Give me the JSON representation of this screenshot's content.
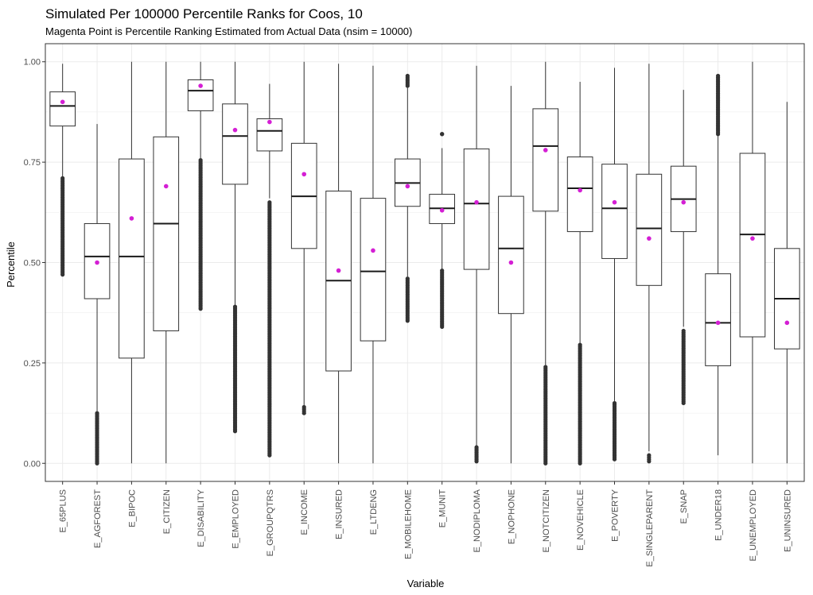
{
  "chart_data": {
    "type": "boxplot",
    "title": "Simulated Per 100000 Percentile Ranks for Coos, 10",
    "subtitle": "Magenta Point is Percentile Ranking Estimated from Actual Data (nsim = 10000)",
    "xlabel": "Variable",
    "ylabel": "Percentile",
    "ylim": [
      -0.045,
      1.045
    ],
    "yticks": [
      "0.00",
      "0.25",
      "0.50",
      "0.75",
      "1.00"
    ],
    "grid": true,
    "colors": {
      "box": "#333333",
      "median": "#1a1a1a",
      "outlier": "#333333",
      "point": "#d41fd4",
      "grid": "#ebebeb",
      "panel_border": "#333333"
    },
    "categories": [
      "E_65PLUS",
      "E_AGFOREST",
      "E_BIPOC",
      "E_CITIZEN",
      "E_DISABILITY",
      "E_EMPLOYED",
      "E_GROUPQTRS",
      "E_INCOME",
      "E_INSURED",
      "E_LTDENG",
      "E_MOBILEHOME",
      "E_MUNIT",
      "E_NODIPLOMA",
      "E_NOPHONE",
      "E_NOTCITIZEN",
      "E_NOVEHICLE",
      "E_POVERTY",
      "E_SINGLEPARENT",
      "E_SNAP",
      "E_UNDER18",
      "E_UNEMPLOYED",
      "E_UNINSURED"
    ],
    "boxes": [
      {
        "q1": 0.84,
        "median": 0.89,
        "q3": 0.925,
        "lower_whisker": 0.71,
        "upper_whisker": 0.995,
        "outliers_low": [
          0.47,
          0.71
        ],
        "outliers_high": [],
        "actual": 0.9
      },
      {
        "q1": 0.41,
        "median": 0.515,
        "q3": 0.597,
        "lower_whisker": 0.13,
        "upper_whisker": 0.845,
        "outliers_low": [
          0.0,
          0.125
        ],
        "outliers_high": [],
        "actual": 0.5
      },
      {
        "q1": 0.262,
        "median": 0.515,
        "q3": 0.758,
        "lower_whisker": 0.0,
        "upper_whisker": 1.0,
        "outliers_low": [],
        "outliers_high": [],
        "actual": 0.61
      },
      {
        "q1": 0.33,
        "median": 0.597,
        "q3": 0.813,
        "lower_whisker": 0.0,
        "upper_whisker": 1.0,
        "outliers_low": [],
        "outliers_high": [],
        "actual": 0.69
      },
      {
        "q1": 0.878,
        "median": 0.928,
        "q3": 0.955,
        "lower_whisker": 0.76,
        "upper_whisker": 1.0,
        "outliers_low": [
          0.385,
          0.755
        ],
        "outliers_high": [],
        "actual": 0.94
      },
      {
        "q1": 0.695,
        "median": 0.815,
        "q3": 0.895,
        "lower_whisker": 0.395,
        "upper_whisker": 1.0,
        "outliers_low": [
          0.08,
          0.39
        ],
        "outliers_high": [],
        "actual": 0.83
      },
      {
        "q1": 0.778,
        "median": 0.828,
        "q3": 0.858,
        "lower_whisker": 0.66,
        "upper_whisker": 0.945,
        "outliers_low": [
          0.02,
          0.65
        ],
        "outliers_high": [],
        "actual": 0.85
      },
      {
        "q1": 0.535,
        "median": 0.665,
        "q3": 0.797,
        "lower_whisker": 0.145,
        "upper_whisker": 1.0,
        "outliers_low": [
          0.125,
          0.14
        ],
        "outliers_high": [],
        "actual": 0.72
      },
      {
        "q1": 0.23,
        "median": 0.455,
        "q3": 0.678,
        "lower_whisker": 0.0,
        "upper_whisker": 0.995,
        "outliers_low": [],
        "outliers_high": [],
        "actual": 0.48
      },
      {
        "q1": 0.305,
        "median": 0.478,
        "q3": 0.66,
        "lower_whisker": 0.0,
        "upper_whisker": 0.99,
        "outliers_low": [],
        "outliers_high": [],
        "actual": 0.53
      },
      {
        "q1": 0.64,
        "median": 0.698,
        "q3": 0.758,
        "lower_whisker": 0.465,
        "upper_whisker": 0.935,
        "outliers_low": [
          0.355,
          0.46
        ],
        "outliers_high": [
          0.94,
          0.965
        ],
        "actual": 0.69
      },
      {
        "q1": 0.597,
        "median": 0.635,
        "q3": 0.67,
        "lower_whisker": 0.485,
        "upper_whisker": 0.785,
        "outliers_low": [
          0.34,
          0.48
        ],
        "outliers_high": [
          0.82
        ],
        "actual": 0.63
      },
      {
        "q1": 0.483,
        "median": 0.647,
        "q3": 0.783,
        "lower_whisker": 0.045,
        "upper_whisker": 0.99,
        "outliers_low": [
          0.005,
          0.04
        ],
        "outliers_high": [],
        "actual": 0.65
      },
      {
        "q1": 0.373,
        "median": 0.535,
        "q3": 0.665,
        "lower_whisker": 0.0,
        "upper_whisker": 0.94,
        "outliers_low": [],
        "outliers_high": [],
        "actual": 0.5
      },
      {
        "q1": 0.628,
        "median": 0.79,
        "q3": 0.883,
        "lower_whisker": 0.245,
        "upper_whisker": 1.0,
        "outliers_low": [
          0.0,
          0.24
        ],
        "outliers_high": [],
        "actual": 0.78
      },
      {
        "q1": 0.577,
        "median": 0.685,
        "q3": 0.763,
        "lower_whisker": 0.3,
        "upper_whisker": 0.95,
        "outliers_low": [
          0.0,
          0.295
        ],
        "outliers_high": [],
        "actual": 0.68
      },
      {
        "q1": 0.51,
        "median": 0.635,
        "q3": 0.745,
        "lower_whisker": 0.155,
        "upper_whisker": 0.985,
        "outliers_low": [
          0.01,
          0.15
        ],
        "outliers_high": [],
        "actual": 0.65
      },
      {
        "q1": 0.443,
        "median": 0.585,
        "q3": 0.72,
        "lower_whisker": 0.03,
        "upper_whisker": 0.995,
        "outliers_low": [
          0.005,
          0.02
        ],
        "outliers_high": [],
        "actual": 0.56
      },
      {
        "q1": 0.577,
        "median": 0.658,
        "q3": 0.74,
        "lower_whisker": 0.34,
        "upper_whisker": 0.93,
        "outliers_low": [
          0.15,
          0.33
        ],
        "outliers_high": [],
        "actual": 0.65
      },
      {
        "q1": 0.243,
        "median": 0.35,
        "q3": 0.472,
        "lower_whisker": 0.02,
        "upper_whisker": 0.815,
        "outliers_low": [],
        "outliers_high": [
          0.82,
          0.965
        ],
        "actual": 0.35
      },
      {
        "q1": 0.315,
        "median": 0.57,
        "q3": 0.772,
        "lower_whisker": 0.0,
        "upper_whisker": 1.0,
        "outliers_low": [],
        "outliers_high": [],
        "actual": 0.56
      },
      {
        "q1": 0.285,
        "median": 0.41,
        "q3": 0.535,
        "lower_whisker": 0.0,
        "upper_whisker": 0.9,
        "outliers_low": [],
        "outliers_high": [],
        "actual": 0.35
      }
    ]
  }
}
